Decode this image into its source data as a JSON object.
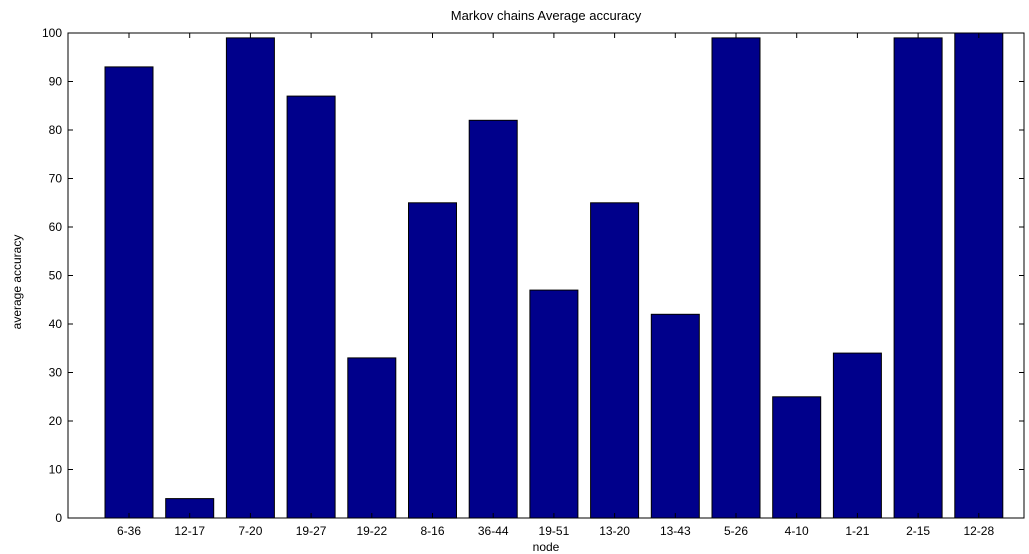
{
  "chart_data": {
    "type": "bar",
    "title": "Markov chains Average accuracy",
    "xlabel": "node",
    "ylabel": "average accuracy",
    "categories": [
      "6-36",
      "12-17",
      "7-20",
      "19-27",
      "19-22",
      "8-16",
      "36-44",
      "19-51",
      "13-20",
      "13-43",
      "5-26",
      "4-10",
      "1-21",
      "2-15",
      "12-28"
    ],
    "values": [
      93,
      4,
      99,
      87,
      33,
      65,
      82,
      47,
      65,
      42,
      99,
      25,
      34,
      99,
      100
    ],
    "ylim": [
      0,
      100
    ],
    "yticks": [
      0,
      10,
      20,
      30,
      40,
      50,
      60,
      70,
      80,
      90,
      100
    ],
    "grid": false,
    "bar_color": "#00008b"
  }
}
